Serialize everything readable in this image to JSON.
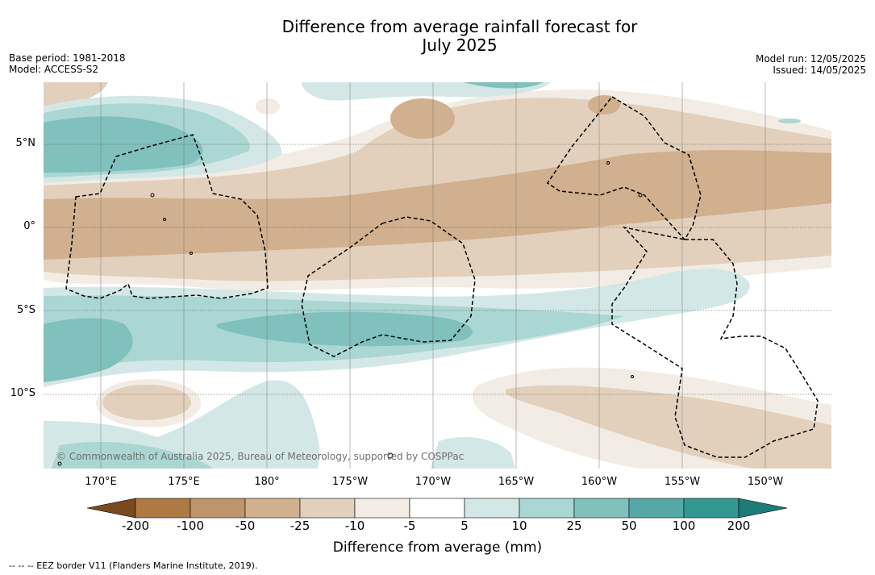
{
  "title_line1": "Difference from average rainfall forecast for",
  "title_line2": "July 2025",
  "meta": {
    "base_period": "Base period: 1981-2018",
    "model": "Model: ACCESS-S2",
    "model_run": "Model run: 12/05/2025",
    "issued": "Issued: 14/05/2025"
  },
  "lat_labels": [
    "5°N",
    "0°",
    "5°S",
    "10°S"
  ],
  "lon_labels": [
    "170°E",
    "175°E",
    "180°",
    "175°W",
    "170°W",
    "165°W",
    "160°W",
    "155°W",
    "150°W"
  ],
  "copyright": "© Commonwealth of Australia 2025, Bureau of Meteorology, supported by COSPPac",
  "colorbar": {
    "ticks": [
      "-200",
      "-100",
      "-50",
      "-25",
      "-10",
      "-5",
      "5",
      "10",
      "25",
      "50",
      "100",
      "200"
    ],
    "colors": [
      "#7a4a1e",
      "#ae7a44",
      "#bf946a",
      "#d0b08e",
      "#e2d0bc",
      "#f2ece4",
      "#ffffff",
      "#d3e8e6",
      "#aad6d3",
      "#80c0bd",
      "#55a8a5",
      "#339894",
      "#1e7c78"
    ],
    "label": "Difference from average (mm)"
  },
  "footnote": "--  --  -- EEZ border V11 (Flanders Marine Institute, 2019)."
}
